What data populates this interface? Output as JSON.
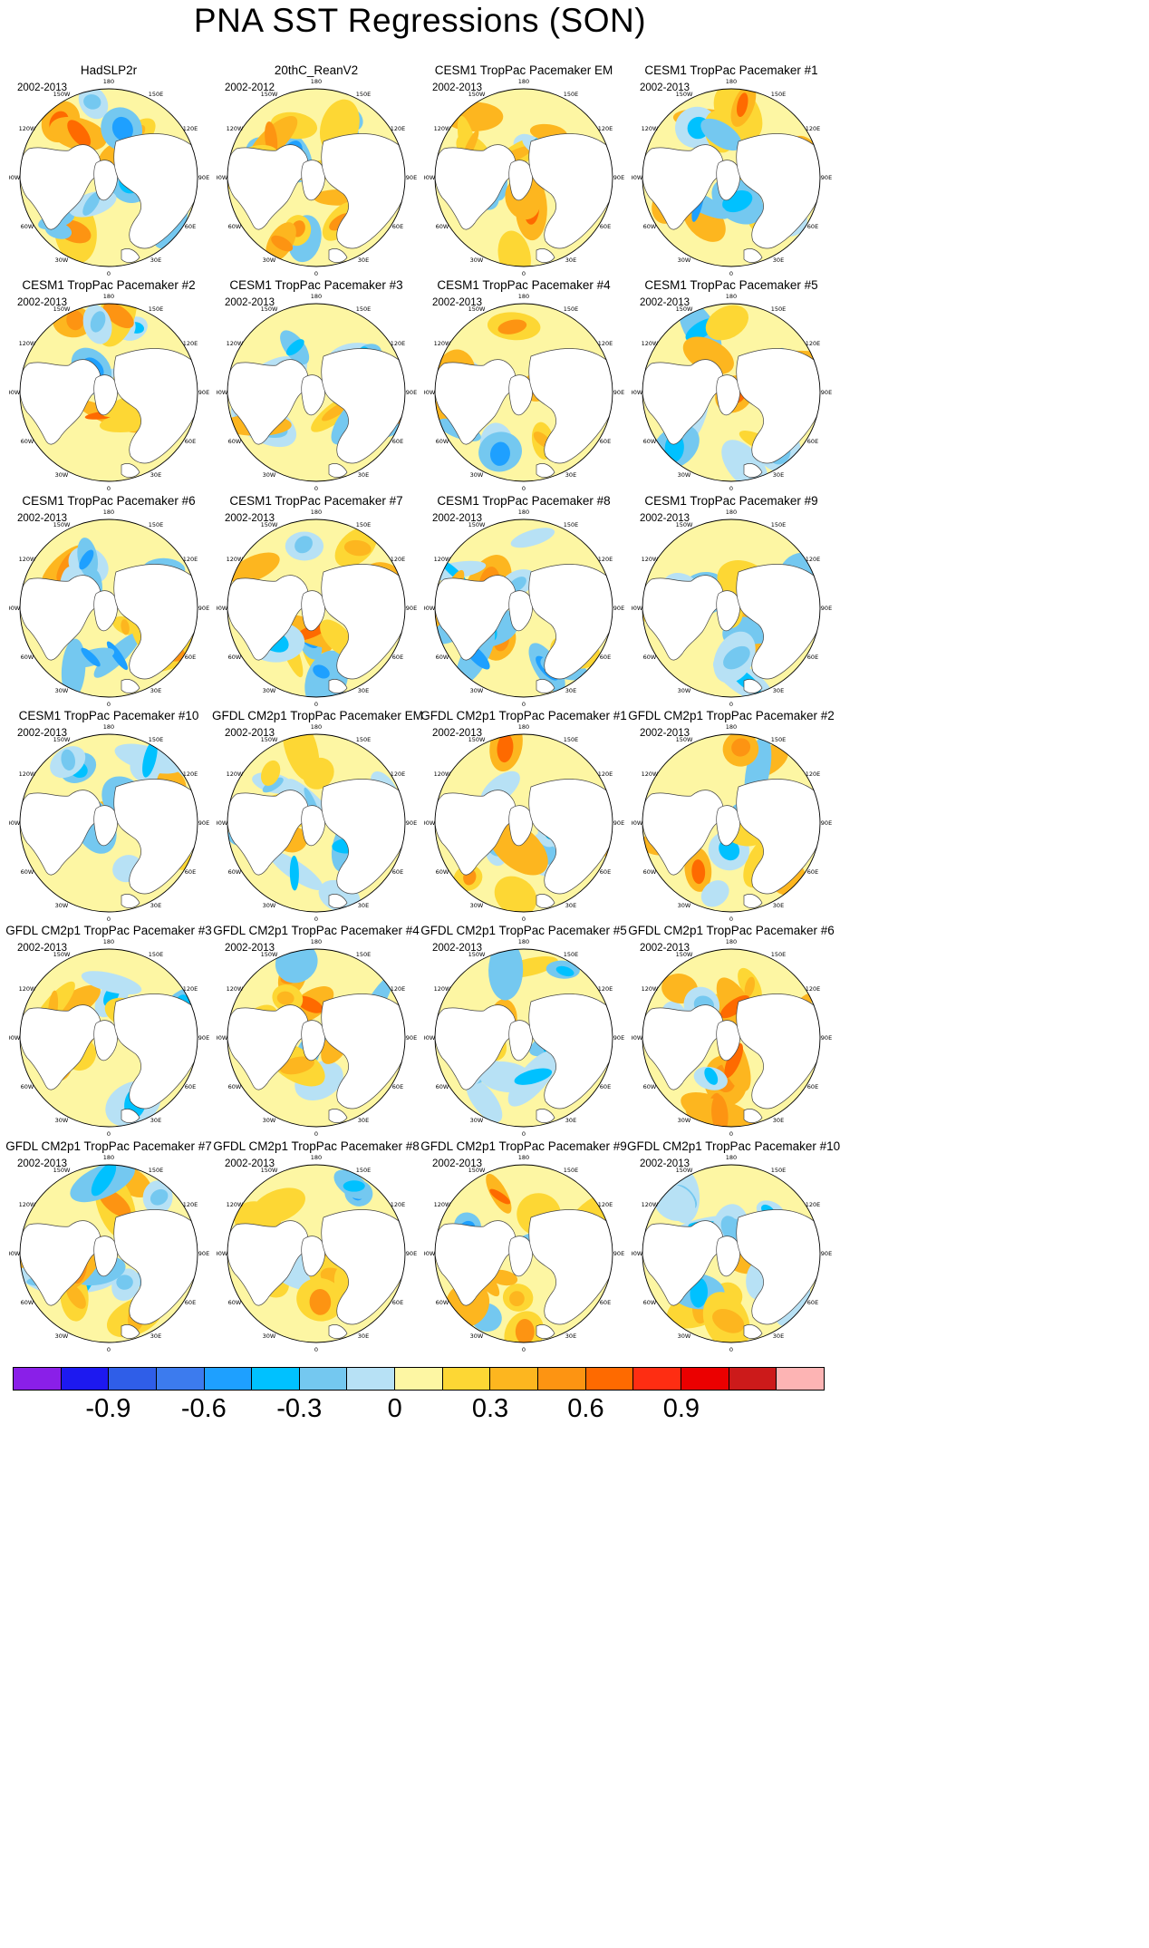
{
  "title": "PNA SST Regressions (SON)",
  "longitude_labels": [
    "180",
    "150W",
    "150E",
    "120W",
    "120E",
    "90W",
    "90E",
    "60W",
    "60E",
    "30W",
    "30E",
    "0"
  ],
  "colors": {
    "land": "#ffffff",
    "coast": "#444444",
    "frame": "#000000",
    "neutral_ocean": "#fdf6a3"
  },
  "panels": [
    {
      "title": "HadSLP2r",
      "period": "2002-2013"
    },
    {
      "title": "20thC_ReanV2",
      "period": "2002-2012"
    },
    {
      "title": "CESM1 TropPac Pacemaker EM",
      "period": "2002-2013"
    },
    {
      "title": "CESM1 TropPac Pacemaker #1",
      "period": "2002-2013"
    },
    {
      "title": "CESM1 TropPac Pacemaker #2",
      "period": "2002-2013"
    },
    {
      "title": "CESM1 TropPac Pacemaker #3",
      "period": "2002-2013"
    },
    {
      "title": "CESM1 TropPac Pacemaker #4",
      "period": "2002-2013"
    },
    {
      "title": "CESM1 TropPac Pacemaker #5",
      "period": "2002-2013"
    },
    {
      "title": "CESM1 TropPac Pacemaker #6",
      "period": "2002-2013"
    },
    {
      "title": "CESM1 TropPac Pacemaker #7",
      "period": "2002-2013"
    },
    {
      "title": "CESM1 TropPac Pacemaker #8",
      "period": "2002-2013"
    },
    {
      "title": "CESM1 TropPac Pacemaker #9",
      "period": "2002-2013"
    },
    {
      "title": "CESM1 TropPac Pacemaker #10",
      "period": "2002-2013"
    },
    {
      "title": "GFDL CM2p1 TropPac Pacemaker EM",
      "period": "2002-2013"
    },
    {
      "title": "GFDL CM2p1 TropPac Pacemaker #1",
      "period": "2002-2013"
    },
    {
      "title": "GFDL CM2p1 TropPac Pacemaker #2",
      "period": "2002-2013"
    },
    {
      "title": "GFDL CM2p1 TropPac Pacemaker #3",
      "period": "2002-2013"
    },
    {
      "title": "GFDL CM2p1 TropPac Pacemaker #4",
      "period": "2002-2013"
    },
    {
      "title": "GFDL CM2p1 TropPac Pacemaker #5",
      "period": "2002-2013"
    },
    {
      "title": "GFDL CM2p1 TropPac Pacemaker #6",
      "period": "2002-2013"
    },
    {
      "title": "GFDL CM2p1 TropPac Pacemaker #7",
      "period": "2002-2013"
    },
    {
      "title": "GFDL CM2p1 TropPac Pacemaker #8",
      "period": "2002-2013"
    },
    {
      "title": "GFDL CM2p1 TropPac Pacemaker #9",
      "period": "2002-2013"
    },
    {
      "title": "GFDL CM2p1 TropPac Pacemaker #10",
      "period": "2002-2013"
    }
  ],
  "colorbar": {
    "colors": [
      "#8a1fe8",
      "#1d19f0",
      "#2f5ee8",
      "#3c7bee",
      "#1ea0ff",
      "#00c1ff",
      "#74c8f0",
      "#b7e1f5",
      "#fdf6a3",
      "#fdd734",
      "#fdb61f",
      "#fd9412",
      "#fe6a00",
      "#fe2d12",
      "#eb0000",
      "#cc1a1a",
      "#fdb4b4"
    ],
    "tick_labels": [
      "-0.9",
      "-0.6",
      "-0.3",
      "0",
      "0.3",
      "0.6",
      "0.9"
    ],
    "tick_boundaries": [
      2,
      5,
      8,
      11,
      14
    ]
  }
}
